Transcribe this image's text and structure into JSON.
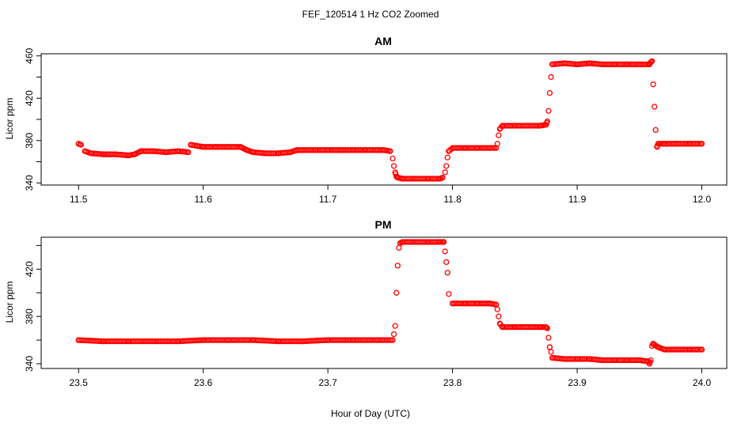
{
  "figure": {
    "title": "FEF_120514  1 Hz CO2 Zoomed",
    "xlabel": "Hour of Day (UTC)"
  },
  "chart_data": [
    {
      "type": "scatter",
      "title": "AM",
      "ylabel": "Licor ppm",
      "xlim": [
        11.47,
        12.02
      ],
      "ylim": [
        338,
        462
      ],
      "xticks": [
        11.5,
        11.6,
        11.7,
        11.8,
        11.9,
        12.0
      ],
      "xtick_labels": [
        "11.5",
        "11.6",
        "11.7",
        "11.8",
        "11.9",
        "12.0"
      ],
      "yticks": [
        340,
        380,
        420,
        460
      ],
      "ytick_labels": [
        "340",
        "380",
        "420",
        "460"
      ],
      "marker": "open-circle",
      "color": "#ff0000",
      "grid": false,
      "series": [
        {
          "x": [
            11.5,
            11.502,
            11.505,
            11.51,
            11.52,
            11.53,
            11.54,
            11.545,
            11.55,
            11.56,
            11.57,
            11.58,
            11.588,
            11.59,
            11.595,
            11.6,
            11.61,
            11.62,
            11.63,
            11.635,
            11.64,
            11.65,
            11.66,
            11.67,
            11.675,
            11.68,
            11.69,
            11.7,
            11.71,
            11.72,
            11.73,
            11.74,
            11.745,
            11.75,
            11.752,
            11.753,
            11.754,
            11.755,
            11.756,
            11.76,
            11.77,
            11.78,
            11.79,
            11.792,
            11.794,
            11.795,
            11.796,
            11.797,
            11.8,
            11.81,
            11.82,
            11.83,
            11.835,
            11.836,
            11.837,
            11.838,
            11.84,
            11.85,
            11.86,
            11.87,
            11.875,
            11.876,
            11.877,
            11.878,
            11.879,
            11.88,
            11.89,
            11.9,
            11.91,
            11.92,
            11.93,
            11.94,
            11.95,
            11.958,
            11.959,
            11.96,
            11.961,
            11.962,
            11.963,
            11.964,
            11.965,
            11.97,
            11.98,
            11.99,
            12.0
          ],
          "y": [
            377,
            376,
            370,
            368,
            367,
            367,
            366,
            367,
            370,
            370,
            369,
            370,
            369,
            376,
            375,
            374,
            374,
            374,
            374,
            371,
            369,
            368,
            368,
            369,
            371,
            371,
            371,
            371,
            371,
            371,
            371,
            371,
            371,
            370,
            363,
            356,
            350,
            346,
            345,
            344,
            344,
            344,
            344,
            345,
            350,
            356,
            364,
            370,
            373,
            373,
            373,
            373,
            373,
            377,
            385,
            391,
            394,
            394,
            394,
            394,
            395,
            398,
            408,
            425,
            440,
            452,
            453,
            452,
            453,
            452,
            452,
            452,
            452,
            452,
            454,
            455,
            433,
            412,
            390,
            374,
            377,
            377,
            377,
            377,
            377
          ]
        }
      ]
    },
    {
      "type": "scatter",
      "title": "PM",
      "ylabel": "Licor ppm",
      "xlim": [
        23.47,
        24.02
      ],
      "ylim": [
        336,
        447
      ],
      "xticks": [
        23.5,
        23.6,
        23.7,
        23.8,
        23.9,
        24.0
      ],
      "xtick_labels": [
        "23.5",
        "23.6",
        "23.7",
        "23.8",
        "23.9",
        "24.0"
      ],
      "yticks": [
        340,
        380,
        420
      ],
      "ytick_labels": [
        "340",
        "380",
        "420"
      ],
      "marker": "open-circle",
      "color": "#ff0000",
      "grid": false,
      "series": [
        {
          "x": [
            23.5,
            23.52,
            23.54,
            23.56,
            23.58,
            23.6,
            23.62,
            23.64,
            23.66,
            23.68,
            23.7,
            23.72,
            23.74,
            23.752,
            23.753,
            23.754,
            23.755,
            23.756,
            23.757,
            23.758,
            23.76,
            23.77,
            23.78,
            23.79,
            23.792,
            23.793,
            23.794,
            23.795,
            23.796,
            23.797,
            23.8,
            23.81,
            23.82,
            23.83,
            23.835,
            23.836,
            23.837,
            23.838,
            23.84,
            23.85,
            23.86,
            23.87,
            23.875,
            23.876,
            23.877,
            23.878,
            23.879,
            23.88,
            23.89,
            23.9,
            23.91,
            23.92,
            23.93,
            23.94,
            23.95,
            23.957,
            23.958,
            23.959,
            23.96,
            23.961,
            23.962,
            23.965,
            23.97,
            23.98,
            23.99,
            24.0
          ],
          "y": [
            360,
            359,
            359,
            359,
            359,
            360,
            360,
            360,
            359,
            359,
            360,
            360,
            360,
            360,
            365,
            372,
            400,
            423,
            438,
            442,
            443,
            443,
            443,
            443,
            443,
            443,
            435,
            426,
            417,
            399,
            391,
            391,
            391,
            391,
            390,
            386,
            380,
            374,
            371,
            371,
            371,
            371,
            371,
            370,
            362,
            354,
            350,
            345,
            344,
            344,
            344,
            343,
            343,
            343,
            343,
            342,
            340,
            343,
            355,
            357,
            356,
            354,
            352,
            352,
            352,
            352
          ]
        }
      ]
    }
  ]
}
